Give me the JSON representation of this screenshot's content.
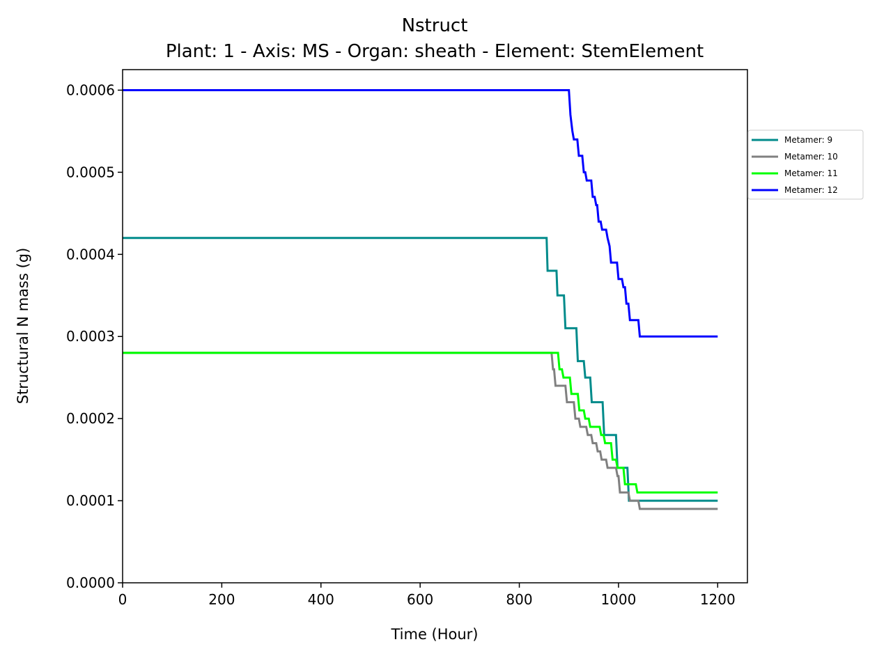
{
  "chart_data": {
    "type": "line",
    "title": "Nstruct",
    "subtitle": "Plant: 1 - Axis: MS - Organ: sheath - Element: StemElement",
    "xlabel": "Time (Hour)",
    "ylabel": "Structural N mass (g)",
    "xlim": [
      0,
      1260
    ],
    "ylim": [
      0,
      0.000625
    ],
    "xticks": [
      0,
      200,
      400,
      600,
      800,
      1000,
      1200
    ],
    "xtick_labels": [
      "0",
      "200",
      "400",
      "600",
      "800",
      "1000",
      "1200"
    ],
    "yticks": [
      0,
      0.0001,
      0.0002,
      0.0003,
      0.0004,
      0.0005,
      0.0006
    ],
    "ytick_labels": [
      "0.0000",
      "0.0001",
      "0.0002",
      "0.0003",
      "0.0004",
      "0.0005",
      "0.0006"
    ],
    "grid": false,
    "legend_position": "right, outside plot area",
    "series": [
      {
        "name": "Metamer: 9",
        "color": "#008b8b",
        "step": true,
        "points": [
          [
            0,
            0.00042
          ],
          [
            855,
            0.00042
          ],
          [
            857,
            0.00038
          ],
          [
            875,
            0.00038
          ],
          [
            877,
            0.00035
          ],
          [
            890,
            0.00035
          ],
          [
            893,
            0.00031
          ],
          [
            915,
            0.00031
          ],
          [
            918,
            0.00027
          ],
          [
            930,
            0.00027
          ],
          [
            933,
            0.00025
          ],
          [
            943,
            0.00025
          ],
          [
            946,
            0.00022
          ],
          [
            968,
            0.00022
          ],
          [
            971,
            0.00018
          ],
          [
            995,
            0.00018
          ],
          [
            998,
            0.00014
          ],
          [
            1018,
            0.00014
          ],
          [
            1021,
            0.0001
          ],
          [
            1200,
            0.0001
          ]
        ]
      },
      {
        "name": "Metamer: 10",
        "color": "#808080",
        "step": true,
        "points": [
          [
            0,
            0.00028
          ],
          [
            865,
            0.00028
          ],
          [
            868,
            0.00026
          ],
          [
            870,
            0.00026
          ],
          [
            873,
            0.00024
          ],
          [
            893,
            0.00024
          ],
          [
            896,
            0.00022
          ],
          [
            910,
            0.00022
          ],
          [
            913,
            0.0002
          ],
          [
            920,
            0.0002
          ],
          [
            923,
            0.00019
          ],
          [
            935,
            0.00019
          ],
          [
            938,
            0.00018
          ],
          [
            945,
            0.00018
          ],
          [
            948,
            0.00017
          ],
          [
            955,
            0.00017
          ],
          [
            958,
            0.00016
          ],
          [
            963,
            0.00016
          ],
          [
            966,
            0.00015
          ],
          [
            975,
            0.00015
          ],
          [
            978,
            0.00014
          ],
          [
            995,
            0.00014
          ],
          [
            998,
            0.00013
          ],
          [
            1000,
            0.00013
          ],
          [
            1003,
            0.00011
          ],
          [
            1020,
            0.00011
          ],
          [
            1023,
            0.0001
          ],
          [
            1040,
            0.0001
          ],
          [
            1043,
            9e-05
          ],
          [
            1200,
            9e-05
          ]
        ]
      },
      {
        "name": "Metamer: 11",
        "color": "#00ff00",
        "step": true,
        "points": [
          [
            0,
            0.00028
          ],
          [
            878,
            0.00028
          ],
          [
            881,
            0.00026
          ],
          [
            886,
            0.00026
          ],
          [
            889,
            0.00025
          ],
          [
            902,
            0.00025
          ],
          [
            905,
            0.00023
          ],
          [
            918,
            0.00023
          ],
          [
            921,
            0.00021
          ],
          [
            930,
            0.00021
          ],
          [
            933,
            0.0002
          ],
          [
            940,
            0.0002
          ],
          [
            943,
            0.00019
          ],
          [
            962,
            0.00019
          ],
          [
            965,
            0.00018
          ],
          [
            970,
            0.00018
          ],
          [
            973,
            0.00017
          ],
          [
            985,
            0.00017
          ],
          [
            988,
            0.00015
          ],
          [
            995,
            0.00015
          ],
          [
            998,
            0.00014
          ],
          [
            1010,
            0.00014
          ],
          [
            1013,
            0.00012
          ],
          [
            1035,
            0.00012
          ],
          [
            1038,
            0.00011
          ],
          [
            1200,
            0.00011
          ]
        ]
      },
      {
        "name": "Metamer: 12",
        "color": "#0000ff",
        "step": true,
        "points": [
          [
            0,
            0.0006
          ],
          [
            900,
            0.0006
          ],
          [
            903,
            0.00057
          ],
          [
            907,
            0.00055
          ],
          [
            910,
            0.00054
          ],
          [
            917,
            0.00054
          ],
          [
            920,
            0.00052
          ],
          [
            927,
            0.00052
          ],
          [
            930,
            0.0005
          ],
          [
            933,
            0.0005
          ],
          [
            936,
            0.00049
          ],
          [
            945,
            0.00049
          ],
          [
            948,
            0.00047
          ],
          [
            952,
            0.00047
          ],
          [
            955,
            0.00046
          ],
          [
            957,
            0.00046
          ],
          [
            960,
            0.00044
          ],
          [
            964,
            0.00044
          ],
          [
            967,
            0.00043
          ],
          [
            975,
            0.00043
          ],
          [
            978,
            0.00042
          ],
          [
            982,
            0.00041
          ],
          [
            985,
            0.00039
          ],
          [
            997,
            0.00039
          ],
          [
            1000,
            0.00037
          ],
          [
            1007,
            0.00037
          ],
          [
            1010,
            0.00036
          ],
          [
            1013,
            0.00036
          ],
          [
            1016,
            0.00034
          ],
          [
            1020,
            0.00034
          ],
          [
            1023,
            0.00032
          ],
          [
            1040,
            0.00032
          ],
          [
            1043,
            0.0003
          ],
          [
            1200,
            0.0003
          ]
        ]
      }
    ]
  }
}
